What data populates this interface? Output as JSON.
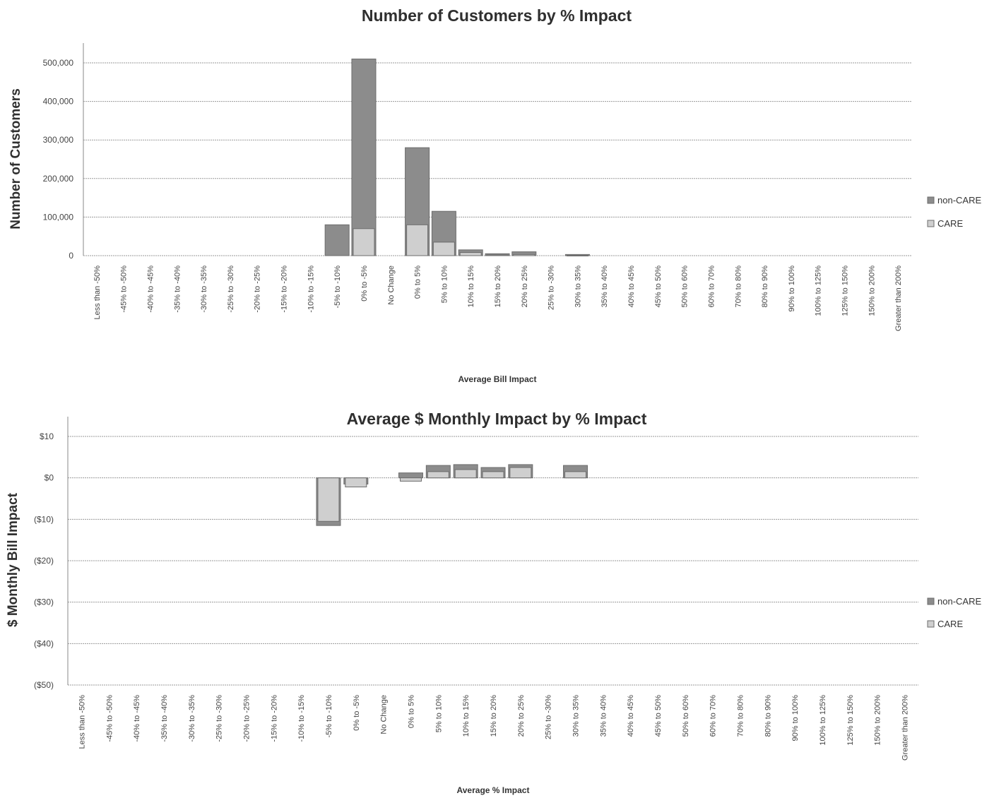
{
  "colors": {
    "non_care": "#8c8c8c",
    "care": "#cfcfcf",
    "grid": "#9a9a9a"
  },
  "chart_data": [
    {
      "type": "bar",
      "title": "Number of Customers by % Impact",
      "xlabel": "Average Bill Impact",
      "ylabel": "Number of Customers",
      "ylim": [
        0,
        500000
      ],
      "yticks": [
        0,
        100000,
        200000,
        300000,
        400000,
        500000
      ],
      "ytick_labels": [
        "0",
        "100,000",
        "200,000",
        "300,000",
        "400,000",
        "500,000"
      ],
      "grid": true,
      "legend_position": "right",
      "categories": [
        "Less than -50%",
        "-45% to -50%",
        "-40% to -45%",
        "-35% to -40%",
        "-30% to -35%",
        "-25% to -30%",
        "-20% to -25%",
        "-15% to -20%",
        "-10% to -15%",
        "-5% to -10%",
        "0% to -5%",
        "No Change",
        "0% to 5%",
        "5% to 10%",
        "10% to 15%",
        "15% to 20%",
        "20% to 25%",
        "25% to -30%",
        "30% to 35%",
        "35% to 40%",
        "40% to 45%",
        "45% to 50%",
        "50% to 60%",
        "60% to 70%",
        "70% to 80%",
        "80% to 90%",
        "90% to 100%",
        "100% to 125%",
        "125% to 150%",
        "150% to 200%",
        "Greater than 200%"
      ],
      "series": [
        {
          "name": "non-CARE",
          "values": [
            0,
            0,
            0,
            0,
            0,
            0,
            0,
            0,
            0,
            80000,
            510000,
            0,
            280000,
            115000,
            15000,
            5000,
            10000,
            0,
            3000,
            0,
            0,
            0,
            0,
            0,
            0,
            0,
            0,
            0,
            0,
            0,
            0
          ]
        },
        {
          "name": "CARE",
          "values": [
            0,
            0,
            0,
            0,
            0,
            0,
            0,
            0,
            0,
            0,
            70000,
            0,
            80000,
            35000,
            8000,
            2000,
            3000,
            0,
            1000,
            0,
            0,
            0,
            0,
            0,
            0,
            0,
            0,
            0,
            0,
            0,
            0
          ]
        }
      ]
    },
    {
      "type": "bar",
      "title": "Average $ Monthly Impact by % Impact",
      "xlabel": "Average % Impact",
      "ylabel": "$ Monthly Bill Impact",
      "ylim": [
        -50,
        10
      ],
      "yticks": [
        10,
        0,
        -10,
        -20,
        -30,
        -40,
        -50
      ],
      "ytick_labels": [
        "$10",
        "$0",
        "($10)",
        "($20)",
        "($30)",
        "($40)",
        "($50)"
      ],
      "grid": true,
      "legend_position": "right",
      "categories": [
        "Less than -50%",
        "-45% to -50%",
        "-40% to -45%",
        "-35% to -40%",
        "-30% to -35%",
        "-25% to -30%",
        "-20% to -25%",
        "-15% to -20%",
        "-10% to -15%",
        "-5% to -10%",
        "0% to -5%",
        "No Change",
        "0% to 5%",
        "5% to 10%",
        "10% to 15%",
        "15% to 20%",
        "20% to 25%",
        "25% to -30%",
        "30% to 35%",
        "35% to 40%",
        "40% to 45%",
        "45% to 50%",
        "50% to 60%",
        "60% to 70%",
        "70% to 80%",
        "80% to 90%",
        "90% to 100%",
        "100% to 125%",
        "125% to 150%",
        "150% to 200%",
        "Greater than 200%"
      ],
      "series": [
        {
          "name": "non-CARE",
          "values": [
            0,
            0,
            0,
            0,
            0,
            0,
            0,
            0,
            0,
            -11.5,
            -1.5,
            0,
            1.2,
            3.0,
            3.2,
            2.5,
            3.2,
            0,
            3.0,
            0,
            0,
            0,
            0,
            0,
            0,
            0,
            0,
            0,
            0,
            0,
            0
          ]
        },
        {
          "name": "CARE",
          "values": [
            0,
            0,
            0,
            0,
            0,
            0,
            0,
            0,
            0,
            -10.5,
            -2.2,
            0,
            -0.8,
            1.5,
            2.0,
            1.5,
            2.5,
            0,
            1.5,
            0,
            0,
            0,
            0,
            0,
            0,
            0,
            0,
            0,
            0,
            0,
            0
          ]
        }
      ]
    }
  ]
}
